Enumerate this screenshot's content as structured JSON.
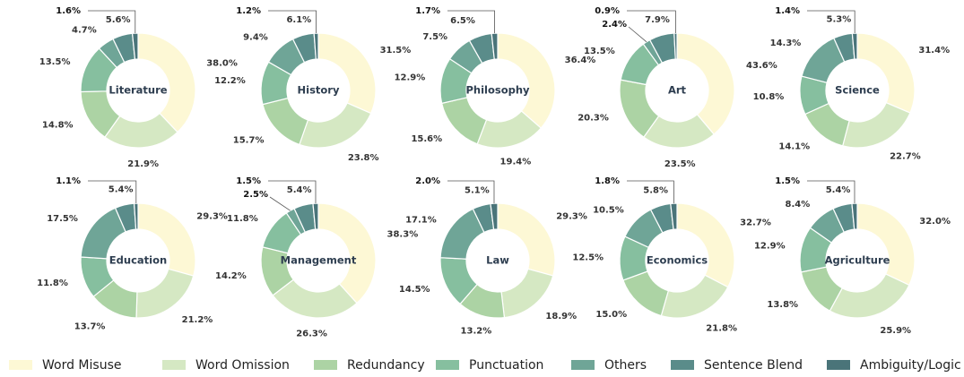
{
  "legend": {
    "categories": [
      "Word Misuse",
      "Word Omission",
      "Redundancy",
      "Punctuation",
      "Others",
      "Sentence Blend",
      "Ambiguity/Logic"
    ],
    "colors": [
      "#fdf8d5",
      "#d5e8c3",
      "#acd3a4",
      "#86bf9f",
      "#6fa597",
      "#5a8c8a",
      "#4a7479"
    ]
  },
  "chart_data": [
    {
      "type": "donut",
      "title": "Literature",
      "values": [
        38.0,
        21.9,
        14.8,
        13.5,
        4.7,
        5.6,
        1.6
      ],
      "value_labels": [
        "38.0%",
        "21.9%",
        "14.8%",
        "13.5%",
        "4.7%",
        "5.6%",
        "1.6%"
      ]
    },
    {
      "type": "donut",
      "title": "History",
      "values": [
        31.5,
        23.8,
        15.7,
        12.2,
        9.4,
        6.1,
        1.2
      ],
      "value_labels": [
        "31.5%",
        "23.8%",
        "15.7%",
        "12.2%",
        "9.4%",
        "6.1%",
        "1.2%"
      ]
    },
    {
      "type": "donut",
      "title": "Philosophy",
      "values": [
        36.4,
        19.4,
        15.6,
        12.9,
        7.5,
        6.5,
        1.7
      ],
      "value_labels": [
        "36.4%",
        "19.4%",
        "15.6%",
        "12.9%",
        "7.5%",
        "6.5%",
        "1.7%"
      ]
    },
    {
      "type": "donut",
      "title": "Art",
      "values": [
        43.6,
        23.5,
        20.3,
        13.5,
        2.4,
        7.9,
        0.9
      ],
      "value_labels": [
        "43.6%",
        "23.5%",
        "20.3%",
        "13.5%",
        "2.4%",
        "7.9%",
        "0.9%"
      ]
    },
    {
      "type": "donut",
      "title": "Science",
      "values": [
        31.4,
        22.7,
        14.1,
        10.8,
        14.3,
        5.3,
        1.4
      ],
      "value_labels": [
        "31.4%",
        "22.7%",
        "14.1%",
        "10.8%",
        "14.3%",
        "5.3%",
        "1.4%"
      ]
    },
    {
      "type": "donut",
      "title": "Education",
      "values": [
        29.3,
        21.2,
        13.7,
        11.8,
        17.5,
        5.4,
        1.1
      ],
      "value_labels": [
        "29.3%",
        "21.2%",
        "13.7%",
        "11.8%",
        "17.5%",
        "5.4%",
        "1.1%"
      ]
    },
    {
      "type": "donut",
      "title": "Management",
      "values": [
        38.3,
        26.3,
        14.2,
        11.8,
        2.5,
        5.4,
        1.5
      ],
      "value_labels": [
        "38.3%",
        "26.3%",
        "14.2%",
        "11.8%",
        "2.5%",
        "5.4%",
        "1.5%"
      ]
    },
    {
      "type": "donut",
      "title": "Law",
      "values": [
        29.3,
        18.9,
        13.2,
        14.5,
        17.1,
        5.1,
        2.0
      ],
      "value_labels": [
        "29.3%",
        "18.9%",
        "13.2%",
        "14.5%",
        "17.1%",
        "5.1%",
        "2.0%"
      ]
    },
    {
      "type": "donut",
      "title": "Economics",
      "values": [
        32.7,
        21.8,
        15.0,
        12.5,
        10.5,
        5.8,
        1.8
      ],
      "value_labels": [
        "32.7%",
        "21.8%",
        "15.0%",
        "12.5%",
        "10.5%",
        "5.8%",
        "1.8%"
      ]
    },
    {
      "type": "donut",
      "title": "Agriculture",
      "values": [
        32.0,
        25.9,
        13.8,
        12.9,
        8.4,
        5.4,
        1.5
      ],
      "value_labels": [
        "32.0%",
        "25.9%",
        "13.8%",
        "12.9%",
        "8.4%",
        "5.4%",
        "1.5%"
      ]
    }
  ]
}
